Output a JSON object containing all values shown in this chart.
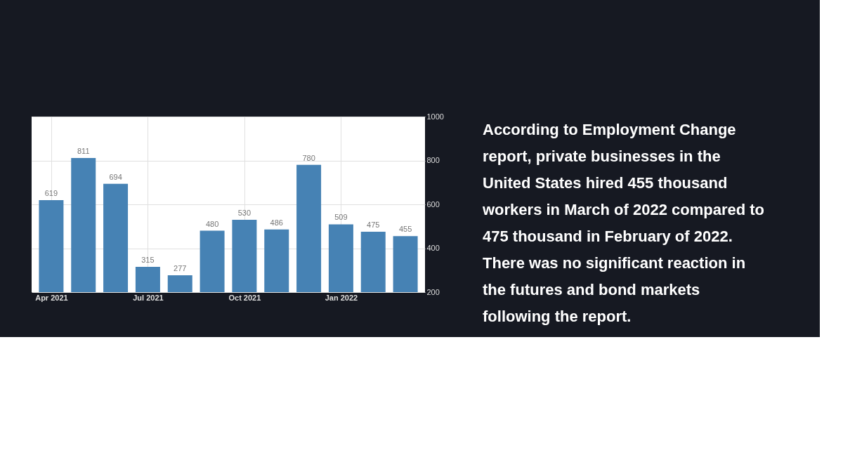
{
  "chart_data": {
    "type": "bar",
    "categories": [
      "Apr 2021",
      null,
      null,
      "Jul 2021",
      null,
      null,
      "Oct 2021",
      null,
      null,
      "Jan 2022",
      null,
      null
    ],
    "values": [
      619,
      811,
      694,
      315,
      277,
      480,
      530,
      486,
      780,
      509,
      475,
      455
    ],
    "color": "#4682b4",
    "ylim": [
      200,
      1000
    ],
    "yticks": [
      200,
      400,
      600,
      800,
      1000
    ],
    "grid": true,
    "data_labels": true,
    "annotations": [
      "According to Employment Change report, private businesses in the United States hired 455 thousand workers in March of 2022 compared to 475 thousand in February of 2022. There was no significant reaction in the futures and bond markets following the report."
    ]
  }
}
